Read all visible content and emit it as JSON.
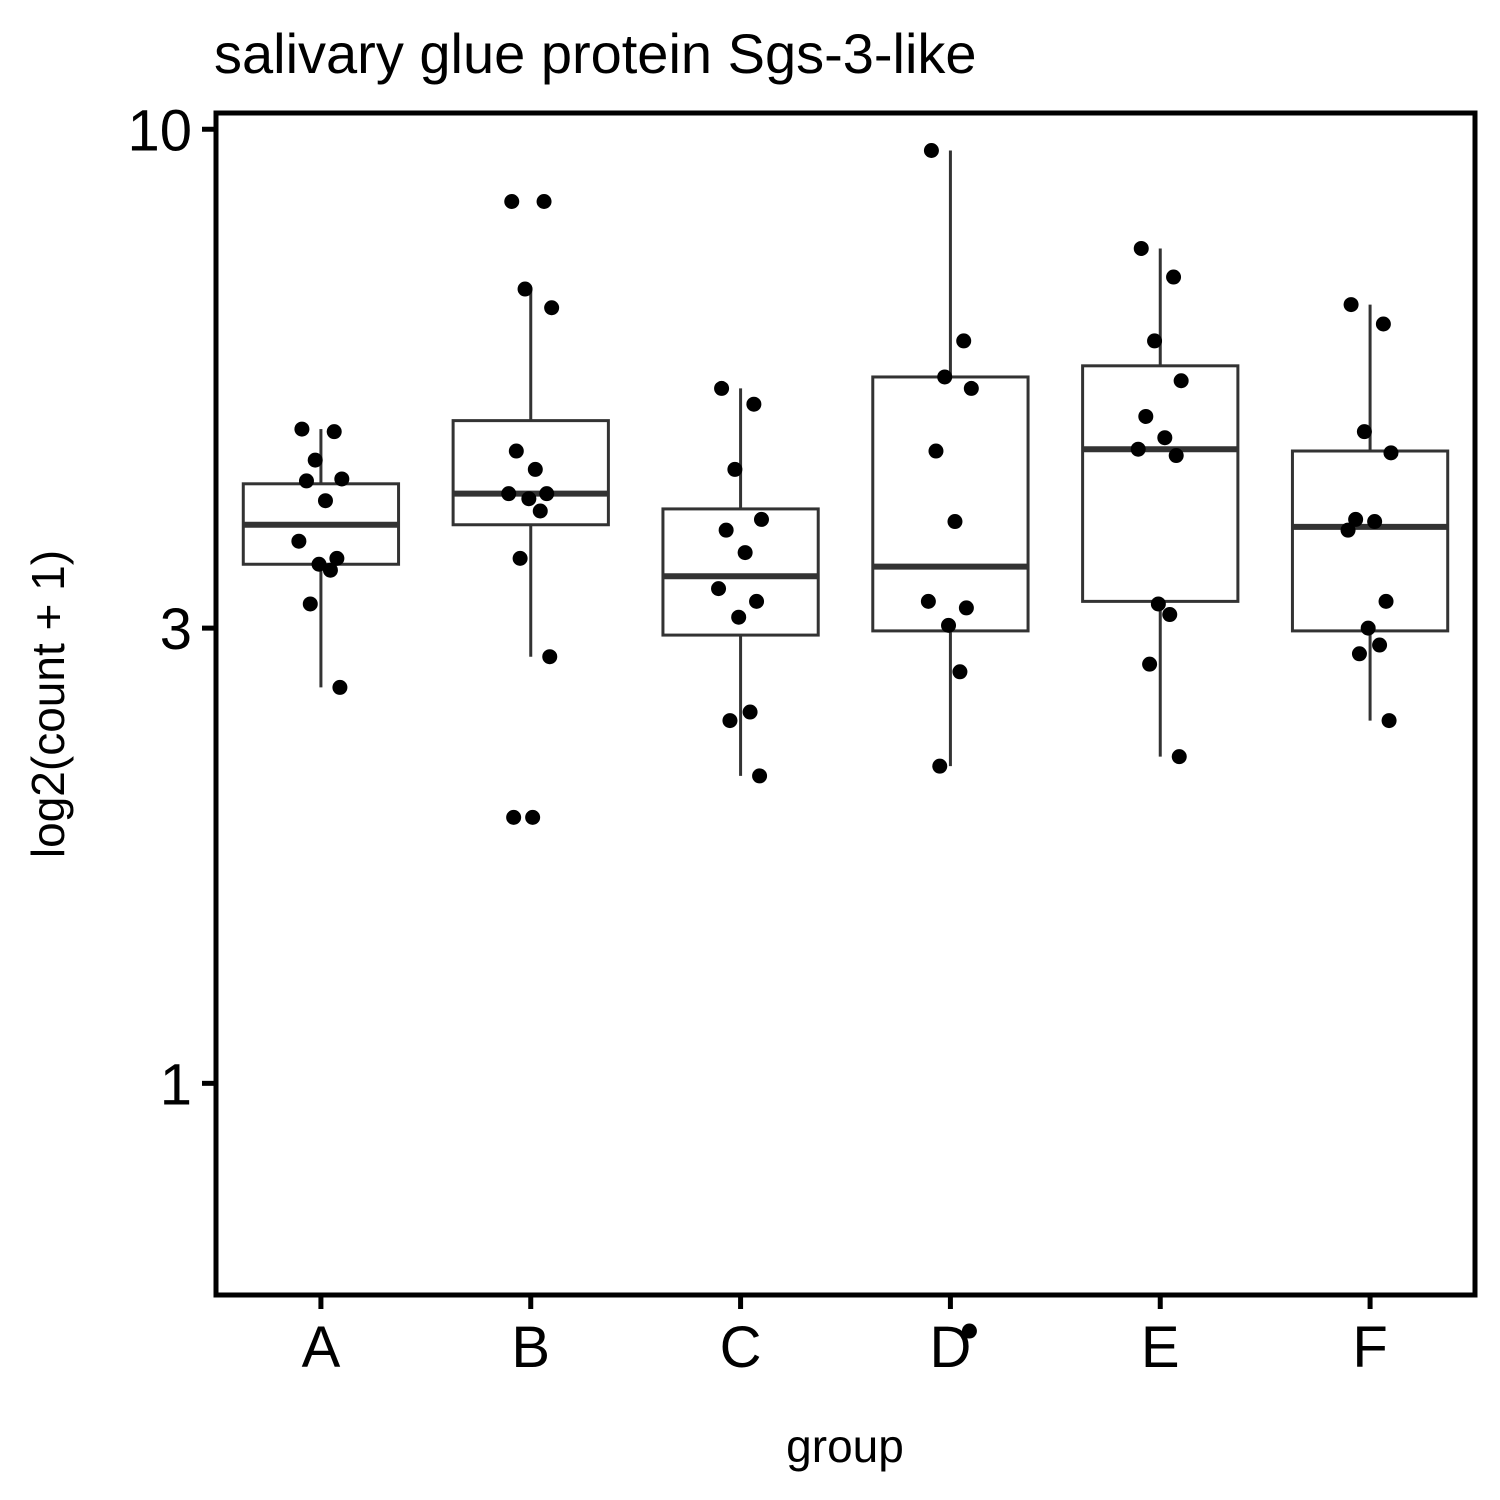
{
  "chart_data": {
    "type": "box",
    "title": "salivary glue protein Sgs-3-like",
    "xlabel": "group",
    "ylabel": "log2(count + 1)",
    "y_scale": "log10",
    "ylim": [
      0.6,
      10.4
    ],
    "yticks": [
      1,
      3,
      10
    ],
    "ytick_labels": [
      "1",
      "3",
      "10"
    ],
    "categories": [
      "A",
      "B",
      "C",
      "D",
      "E",
      "F"
    ],
    "grid": false,
    "legend": "none",
    "colors": {
      "box_line": "#333333",
      "point": "#000000",
      "frame": "#000000"
    },
    "boxes": [
      {
        "group": "A",
        "q1": 3.5,
        "median": 3.85,
        "q3": 4.25,
        "whisker_low": 2.6,
        "whisker_high": 4.85
      },
      {
        "group": "B",
        "q1": 3.85,
        "median": 4.15,
        "q3": 4.95,
        "whisker_low": 2.8,
        "whisker_high": 6.8
      },
      {
        "group": "C",
        "q1": 2.95,
        "median": 3.4,
        "q3": 4.0,
        "whisker_low": 2.1,
        "whisker_high": 5.35
      },
      {
        "group": "D",
        "q1": 2.98,
        "median": 3.48,
        "q3": 5.5,
        "whisker_low": 2.15,
        "whisker_high": 9.5
      },
      {
        "group": "E",
        "q1": 3.2,
        "median": 4.62,
        "q3": 5.65,
        "whisker_low": 2.2,
        "whisker_high": 7.5
      },
      {
        "group": "F",
        "q1": 2.98,
        "median": 3.83,
        "q3": 4.6,
        "whisker_low": 2.4,
        "whisker_high": 6.55
      }
    ],
    "points": [
      {
        "group": "A",
        "values": [
          4.85,
          4.82,
          4.5,
          4.3,
          4.28,
          4.08,
          3.7,
          3.55,
          3.5,
          3.45,
          3.18,
          2.6
        ]
      },
      {
        "group": "B",
        "values": [
          8.4,
          8.4,
          6.8,
          6.5,
          4.6,
          4.4,
          4.15,
          4.15,
          4.1,
          3.98,
          3.55,
          2.8,
          1.9,
          1.9
        ]
      },
      {
        "group": "C",
        "values": [
          5.35,
          5.15,
          4.4,
          3.9,
          3.8,
          3.6,
          3.3,
          3.2,
          3.08,
          2.45,
          2.4,
          2.1
        ]
      },
      {
        "group": "D",
        "values": [
          9.5,
          6.0,
          5.5,
          5.35,
          4.6,
          3.88,
          3.2,
          3.15,
          3.02,
          2.7,
          2.15,
          0.55
        ]
      },
      {
        "group": "E",
        "values": [
          7.5,
          7.0,
          6.0,
          5.45,
          5.0,
          4.75,
          4.62,
          4.55,
          3.18,
          3.1,
          2.75,
          2.2
        ]
      },
      {
        "group": "F",
        "values": [
          6.55,
          6.25,
          4.82,
          4.58,
          3.9,
          3.88,
          3.8,
          3.2,
          3.0,
          2.88,
          2.82,
          2.4
        ]
      }
    ]
  }
}
